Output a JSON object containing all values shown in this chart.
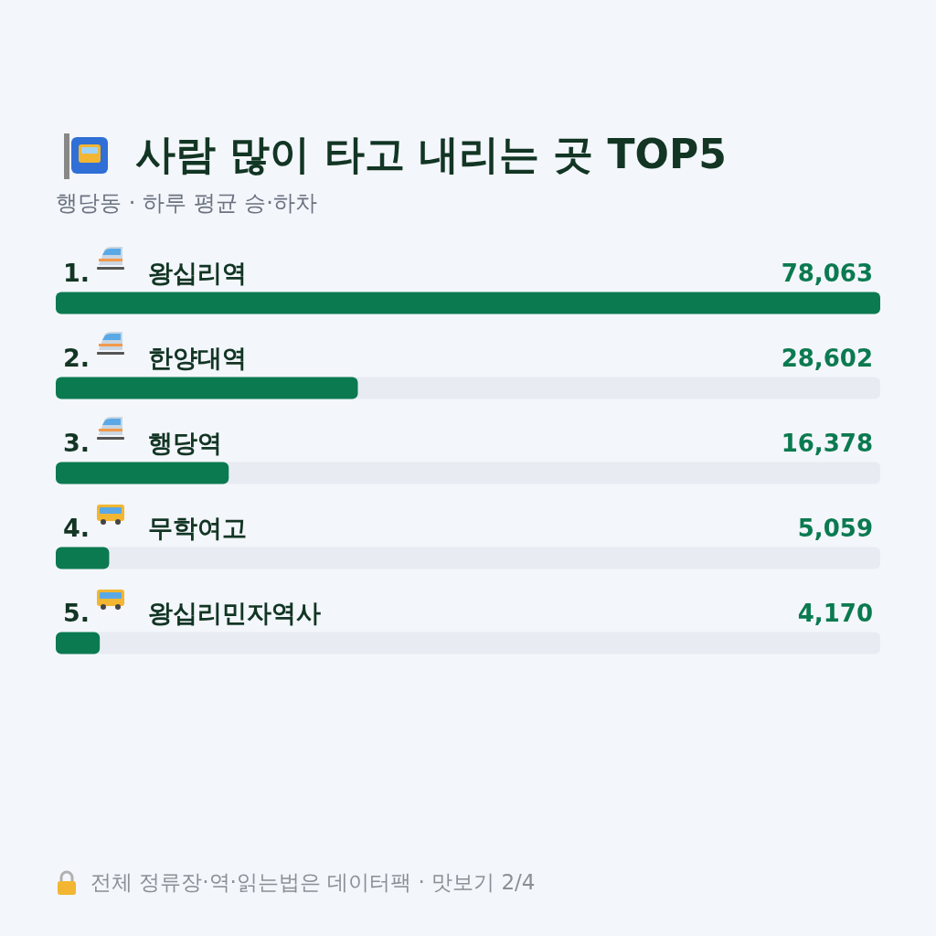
{
  "chart_data": {
    "type": "bar",
    "orientation": "horizontal",
    "title": "사람 많이 타고 내리는 곳 TOP5",
    "subtitle": "행당동 · 하루 평균 승·하차",
    "categories": [
      "1. 왕십리역",
      "2. 한양대역",
      "3. 행당역",
      "4. 무학여고",
      "5. 왕십리민자역사"
    ],
    "values": [
      78063,
      28602,
      16378,
      5059,
      4170
    ],
    "color": "#0b7a50",
    "value_labels": [
      "78,063",
      "28,602",
      "16,378",
      "5,059",
      "4,170"
    ],
    "annotations": [
      "전체 정류장·역·읽는법은 데이터팩 · 맛보기 2/4"
    ]
  }
}
